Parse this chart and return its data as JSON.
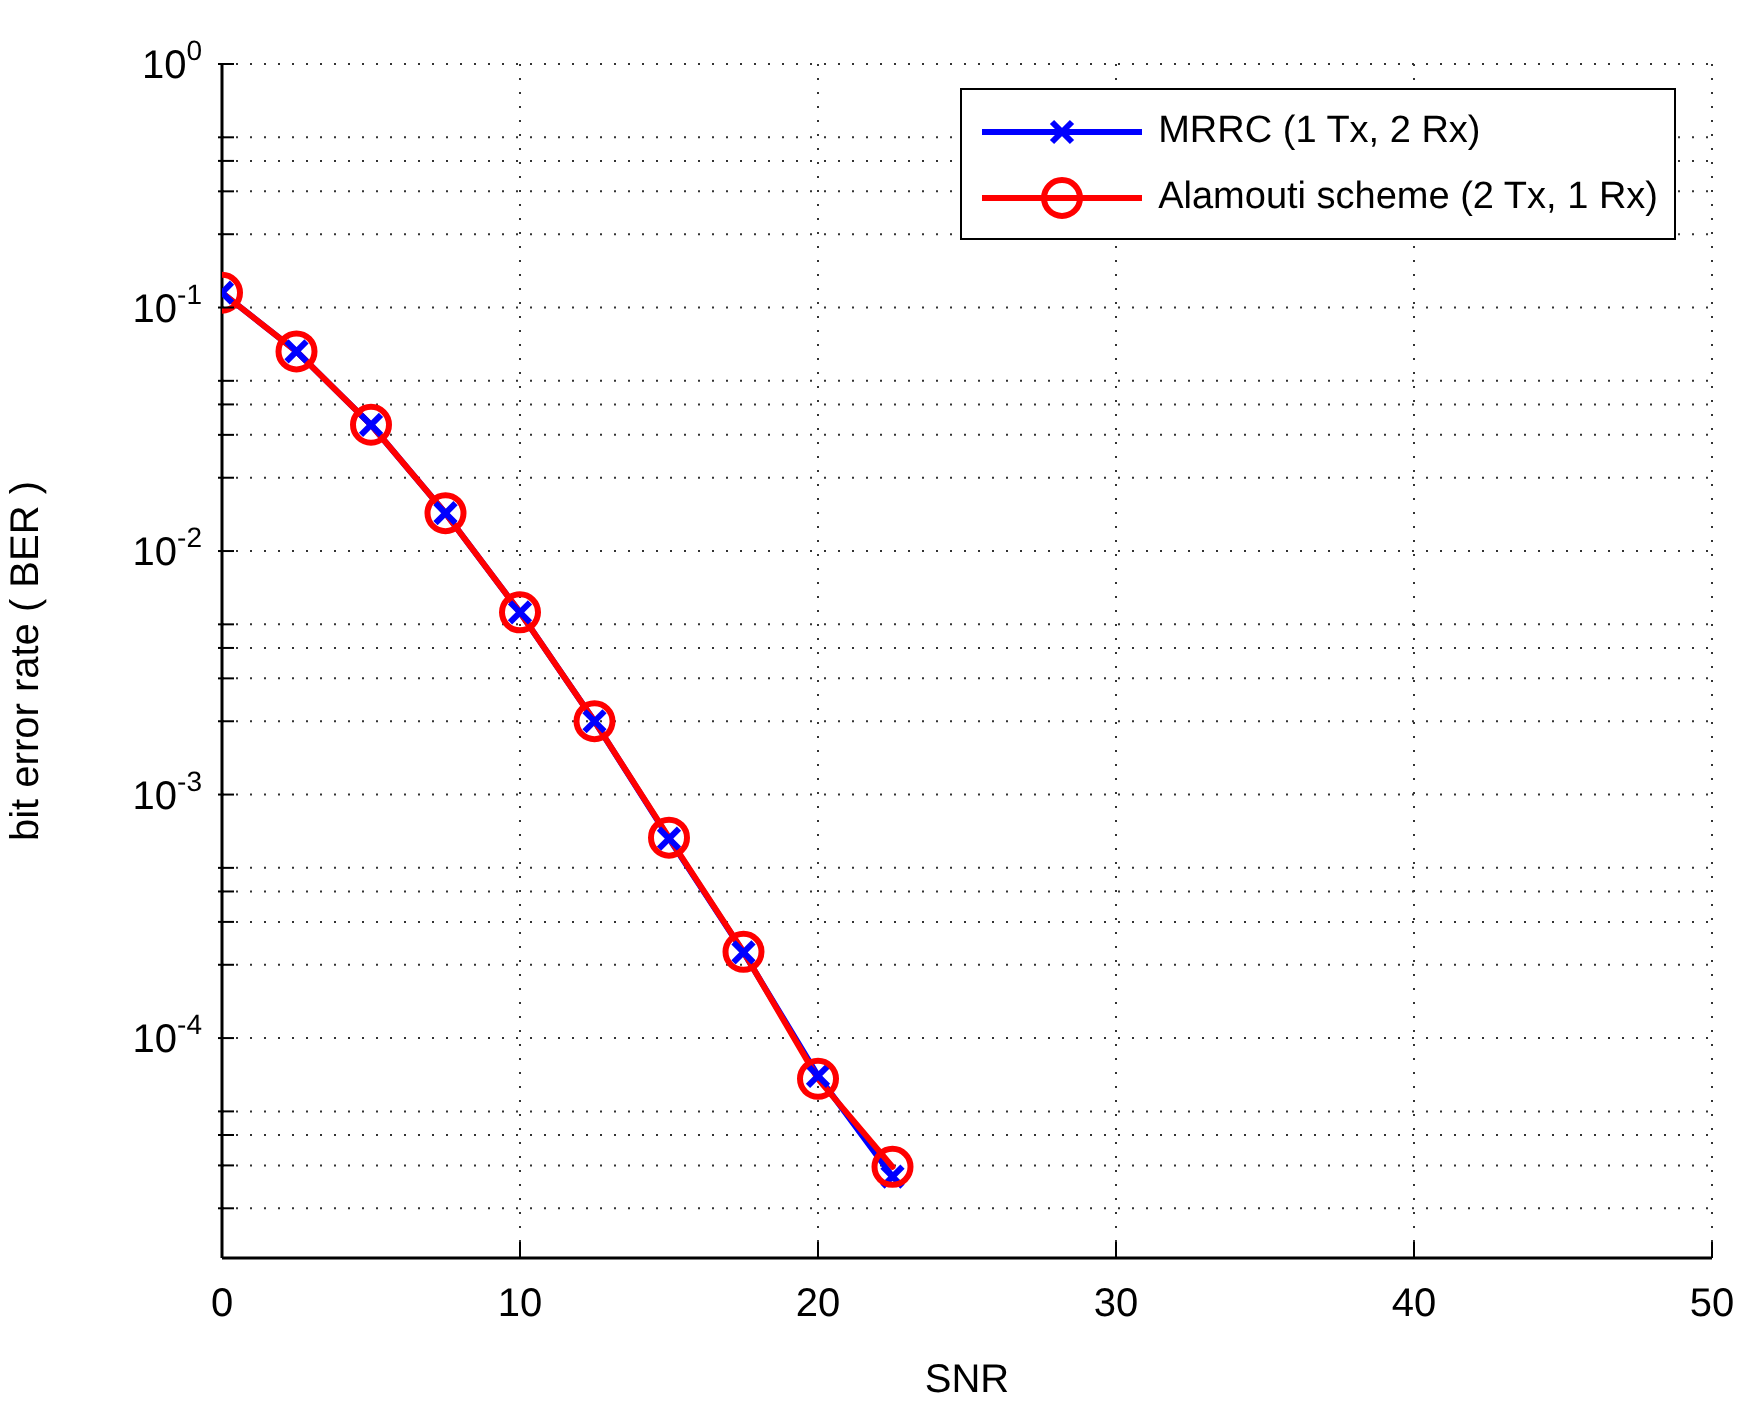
{
  "chart_data": {
    "type": "line",
    "xlabel": "SNR",
    "ylabel": "bit error rate ( BER )",
    "log": "y",
    "grid": true,
    "legend": "top right",
    "line_style": "solid",
    "x": [
      0,
      2.5,
      5,
      7.5,
      10,
      12.5,
      15,
      17.5,
      20,
      22.5
    ],
    "series": [
      {
        "name": "MRRC (1 Tx, 2 Rx)",
        "color": "#0000ff",
        "marker": "cross",
        "values": [
          0.115,
          0.066,
          0.033,
          0.0143,
          0.0056,
          0.002,
          0.00066,
          0.000225,
          7e-05,
          2.7e-05
        ]
      },
      {
        "name": "Alamouti scheme (2 Tx, 1 Rx)",
        "color": "#ff0000",
        "marker": "circle",
        "values": [
          0.115,
          0.066,
          0.033,
          0.0143,
          0.0056,
          0.002,
          0.000665,
          0.000226,
          6.8e-05,
          2.96e-05
        ]
      }
    ],
    "xlim": [
      0,
      50
    ],
    "xticks": [
      0,
      10,
      20,
      30,
      40,
      50
    ],
    "ylim": [
      1.25e-05,
      1
    ],
    "yticks": [
      {
        "value": 1,
        "label": "10$^{0}$"
      },
      {
        "value": 0.5,
        "label": null
      },
      {
        "value": 0.4,
        "label": null
      },
      {
        "value": 0.3,
        "label": null
      },
      {
        "value": 0.2,
        "label": null
      },
      {
        "value": 0.1,
        "label": "10$^{-1}$"
      },
      {
        "value": 0.05,
        "label": null
      },
      {
        "value": 0.04,
        "label": null
      },
      {
        "value": 0.03,
        "label": null
      },
      {
        "value": 0.02,
        "label": null
      },
      {
        "value": 0.01,
        "label": "10$^{-2}$"
      },
      {
        "value": 0.005,
        "label": null
      },
      {
        "value": 0.004,
        "label": null
      },
      {
        "value": 0.003,
        "label": null
      },
      {
        "value": 0.002,
        "label": null
      },
      {
        "value": 0.001,
        "label": "10$^{-3}$"
      },
      {
        "value": 0.0005,
        "label": null
      },
      {
        "value": 0.0004,
        "label": null
      },
      {
        "value": 0.0003,
        "label": null
      },
      {
        "value": 0.0002,
        "label": null
      },
      {
        "value": 0.0001,
        "label": "10$^{-4}$"
      },
      {
        "value": 5e-05,
        "label": null
      },
      {
        "value": 4e-05,
        "label": null
      },
      {
        "value": 3e-05,
        "label": null
      },
      {
        "value": 2e-05,
        "label": null
      }
    ]
  }
}
